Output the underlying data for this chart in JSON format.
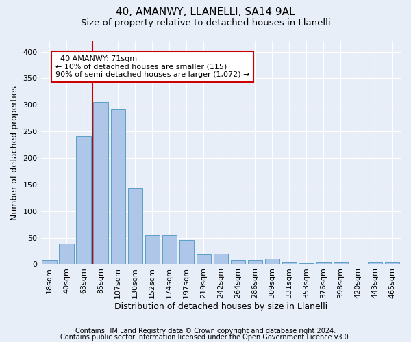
{
  "title1": "40, AMANWY, LLANELLI, SA14 9AL",
  "title2": "Size of property relative to detached houses in Llanelli",
  "xlabel": "Distribution of detached houses by size in Llanelli",
  "ylabel": "Number of detached properties",
  "footnote1": "Contains HM Land Registry data © Crown copyright and database right 2024.",
  "footnote2": "Contains public sector information licensed under the Open Government Licence v3.0.",
  "categories": [
    "18sqm",
    "40sqm",
    "63sqm",
    "85sqm",
    "107sqm",
    "130sqm",
    "152sqm",
    "174sqm",
    "197sqm",
    "219sqm",
    "242sqm",
    "264sqm",
    "286sqm",
    "309sqm",
    "331sqm",
    "353sqm",
    "376sqm",
    "398sqm",
    "420sqm",
    "443sqm",
    "465sqm"
  ],
  "values": [
    8,
    39,
    241,
    305,
    291,
    143,
    55,
    55,
    45,
    18,
    20,
    8,
    8,
    11,
    5,
    2,
    4,
    4,
    1,
    5,
    5
  ],
  "bar_color": "#aec6e8",
  "bar_edge_color": "#5a9fc8",
  "vline_color": "#cc0000",
  "vline_x": 2.5,
  "annotation_line1": "  40 AMANWY: 71sqm",
  "annotation_line2": "← 10% of detached houses are smaller (115)",
  "annotation_line3": "90% of semi-detached houses are larger (1,072) →",
  "annotation_box_color": "#ffffff",
  "annotation_box_edge": "#cc0000",
  "bg_color": "#e8eef8",
  "plot_bg_color": "#e8eef8",
  "ylim": [
    0,
    420
  ],
  "yticks": [
    0,
    50,
    100,
    150,
    200,
    250,
    300,
    350,
    400
  ],
  "title1_fontsize": 11,
  "title2_fontsize": 9.5,
  "xlabel_fontsize": 9,
  "ylabel_fontsize": 9,
  "tick_fontsize": 8,
  "footnote_fontsize": 7
}
